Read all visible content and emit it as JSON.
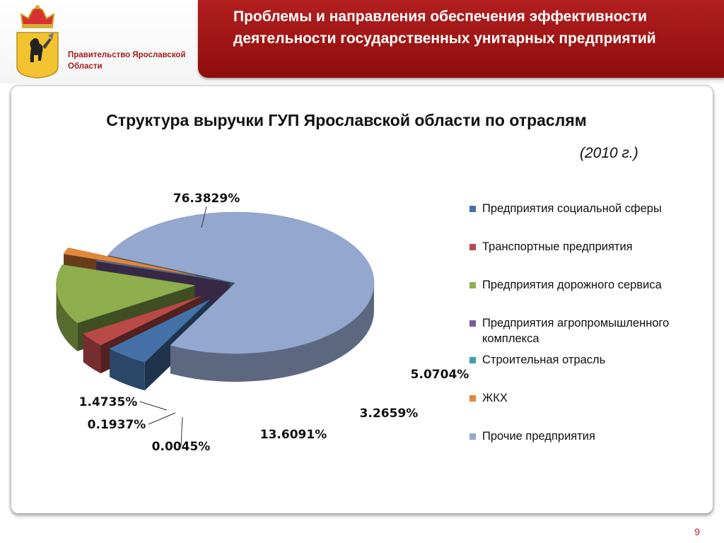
{
  "header": {
    "government_label": "Правительство Ярославской Области",
    "title": "Проблемы и направления обеспечения эффективности деятельности государственных унитарных предприятий"
  },
  "chart_data": {
    "type": "pie",
    "title": "Структура выручки ГУП Ярославской области по отраслям",
    "subtitle": "(2010 г.)",
    "legend_placement": "right",
    "slices": [
      {
        "name": "Предприятия социальной сферы",
        "value": 5.0704,
        "label": "5.0704%",
        "color": "#4472a8"
      },
      {
        "name": "Транспортные предприятия",
        "value": 3.2659,
        "label": "3.2659%",
        "color": "#b94a48"
      },
      {
        "name": "Предприятия дорожного сервиса",
        "value": 13.6091,
        "label": "13.6091%",
        "color": "#8fae4d"
      },
      {
        "name": "Предприятия агропромышленного комплекса",
        "value": 0.1937,
        "label": "0.1937%",
        "color": "#7a5c9c"
      },
      {
        "name": "Строительная отрасль",
        "value": 0.0045,
        "label": "0.0045%",
        "color": "#3f9fb2"
      },
      {
        "name": "ЖКХ",
        "value": 1.4735,
        "label": "1.4735%",
        "color": "#e0873a"
      },
      {
        "name": "Прочие предприятия",
        "value": 76.3829,
        "label": "76.3829%",
        "color": "#94a8cf"
      }
    ]
  },
  "footer": {
    "page_number": "9"
  }
}
